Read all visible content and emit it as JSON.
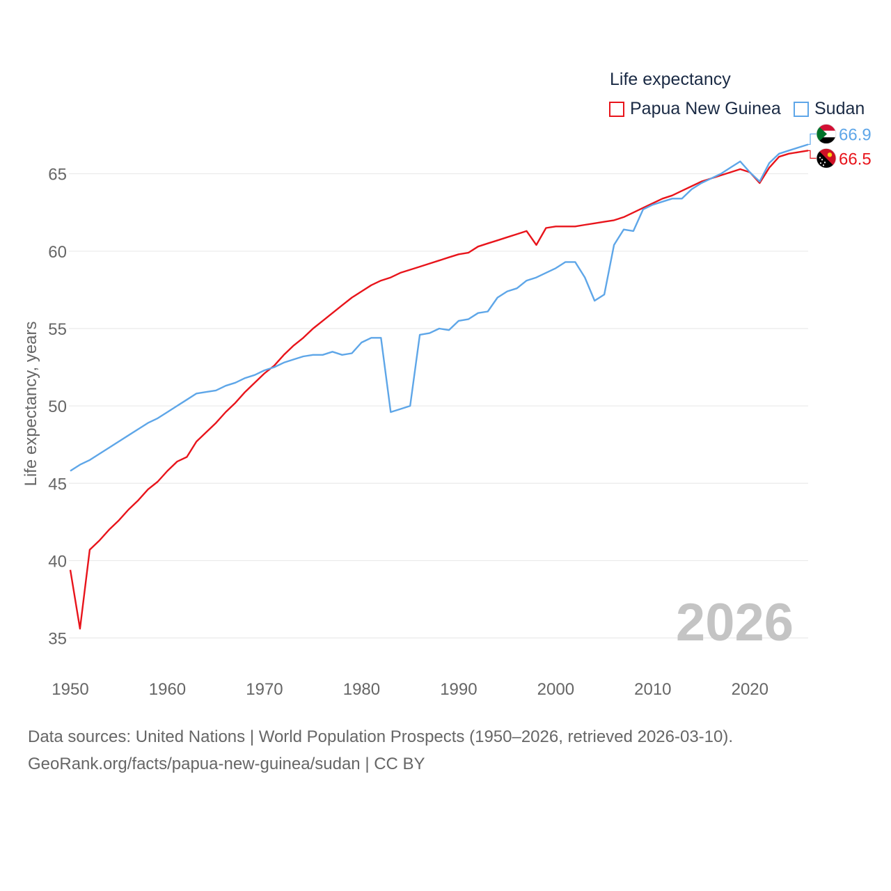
{
  "legend": {
    "title": "Life expectancy",
    "items": [
      {
        "label": "Papua New Guinea",
        "color": "#e8141b"
      },
      {
        "label": "Sudan",
        "color": "#5ea6e8"
      }
    ]
  },
  "source": {
    "line1": "Data sources: United Nations | World Population Prospects (1950–2026, retrieved 2026-03-10).",
    "line2": "GeoRank.org/facts/papua-new-guinea/sudan | CC BY"
  },
  "chart_data": {
    "type": "line",
    "title": "Life expectancy",
    "xlabel": "",
    "ylabel": "Life expectancy, years",
    "xlim": [
      1950,
      2026
    ],
    "ylim": [
      33,
      68
    ],
    "x_ticks": [
      1950,
      1960,
      1970,
      1980,
      1990,
      2000,
      2010,
      2020
    ],
    "y_ticks": [
      35,
      40,
      45,
      50,
      55,
      60,
      65
    ],
    "grid": true,
    "year_watermark": "2026",
    "axis_color": "#666666",
    "grid_color": "#e6e6e6",
    "watermark_color": "#c4c4c4",
    "series": [
      {
        "name": "Papua New Guinea",
        "color": "#e8141b",
        "end_label": "66.5",
        "flag": "papua-new-guinea-flag-icon",
        "x": [
          1950,
          1951,
          1952,
          1953,
          1954,
          1955,
          1956,
          1957,
          1958,
          1959,
          1960,
          1961,
          1962,
          1963,
          1964,
          1965,
          1966,
          1967,
          1968,
          1969,
          1970,
          1971,
          1972,
          1973,
          1974,
          1975,
          1976,
          1977,
          1978,
          1979,
          1980,
          1981,
          1982,
          1983,
          1984,
          1985,
          1986,
          1987,
          1988,
          1989,
          1990,
          1991,
          1992,
          1993,
          1994,
          1995,
          1996,
          1997,
          1998,
          1999,
          2000,
          2001,
          2002,
          2003,
          2004,
          2005,
          2006,
          2007,
          2008,
          2009,
          2010,
          2011,
          2012,
          2013,
          2014,
          2015,
          2016,
          2017,
          2018,
          2019,
          2020,
          2021,
          2022,
          2023,
          2024,
          2025,
          2026
        ],
        "values": [
          39.4,
          35.6,
          40.7,
          41.3,
          42.0,
          42.6,
          43.3,
          43.9,
          44.6,
          45.1,
          45.8,
          46.4,
          46.7,
          47.7,
          48.3,
          48.9,
          49.6,
          50.2,
          50.9,
          51.5,
          52.1,
          52.6,
          53.3,
          53.9,
          54.4,
          55.0,
          55.5,
          56.0,
          56.5,
          57.0,
          57.4,
          57.8,
          58.1,
          58.3,
          58.6,
          58.8,
          59.0,
          59.2,
          59.4,
          59.6,
          59.8,
          59.9,
          60.3,
          60.5,
          60.7,
          60.9,
          61.1,
          61.3,
          60.4,
          61.5,
          61.6,
          61.6,
          61.6,
          61.7,
          61.8,
          61.9,
          62.0,
          62.2,
          62.5,
          62.8,
          63.1,
          63.4,
          63.6,
          63.9,
          64.2,
          64.5,
          64.7,
          64.9,
          65.1,
          65.3,
          65.1,
          64.4,
          65.4,
          66.1,
          66.3,
          66.4,
          66.5
        ]
      },
      {
        "name": "Sudan",
        "color": "#5ea6e8",
        "end_label": "66.9",
        "flag": "sudan-flag-icon",
        "x": [
          1950,
          1951,
          1952,
          1953,
          1954,
          1955,
          1956,
          1957,
          1958,
          1959,
          1960,
          1961,
          1962,
          1963,
          1964,
          1965,
          1966,
          1967,
          1968,
          1969,
          1970,
          1971,
          1972,
          1973,
          1974,
          1975,
          1976,
          1977,
          1978,
          1979,
          1980,
          1981,
          1982,
          1983,
          1984,
          1985,
          1986,
          1987,
          1988,
          1989,
          1990,
          1991,
          1992,
          1993,
          1994,
          1995,
          1996,
          1997,
          1998,
          1999,
          2000,
          2001,
          2002,
          2003,
          2004,
          2005,
          2006,
          2007,
          2008,
          2009,
          2010,
          2011,
          2012,
          2013,
          2014,
          2015,
          2016,
          2017,
          2018,
          2019,
          2020,
          2021,
          2022,
          2023,
          2024,
          2025,
          2026
        ],
        "values": [
          45.8,
          46.2,
          46.5,
          46.9,
          47.3,
          47.7,
          48.1,
          48.5,
          48.9,
          49.2,
          49.6,
          50.0,
          50.4,
          50.8,
          50.9,
          51.0,
          51.3,
          51.5,
          51.8,
          52.0,
          52.3,
          52.5,
          52.8,
          53.0,
          53.2,
          53.3,
          53.3,
          53.5,
          53.3,
          53.4,
          54.1,
          54.4,
          54.4,
          49.6,
          49.8,
          50.0,
          54.6,
          54.7,
          55.0,
          54.9,
          55.5,
          55.6,
          56.0,
          56.1,
          57.0,
          57.4,
          57.6,
          58.1,
          58.3,
          58.6,
          58.9,
          59.3,
          59.3,
          58.3,
          56.8,
          57.2,
          60.4,
          61.4,
          61.3,
          62.7,
          63.0,
          63.2,
          63.4,
          63.4,
          64.0,
          64.4,
          64.7,
          65.0,
          65.4,
          65.8,
          65.1,
          64.5,
          65.7,
          66.3,
          66.5,
          66.7,
          66.9
        ]
      }
    ]
  }
}
